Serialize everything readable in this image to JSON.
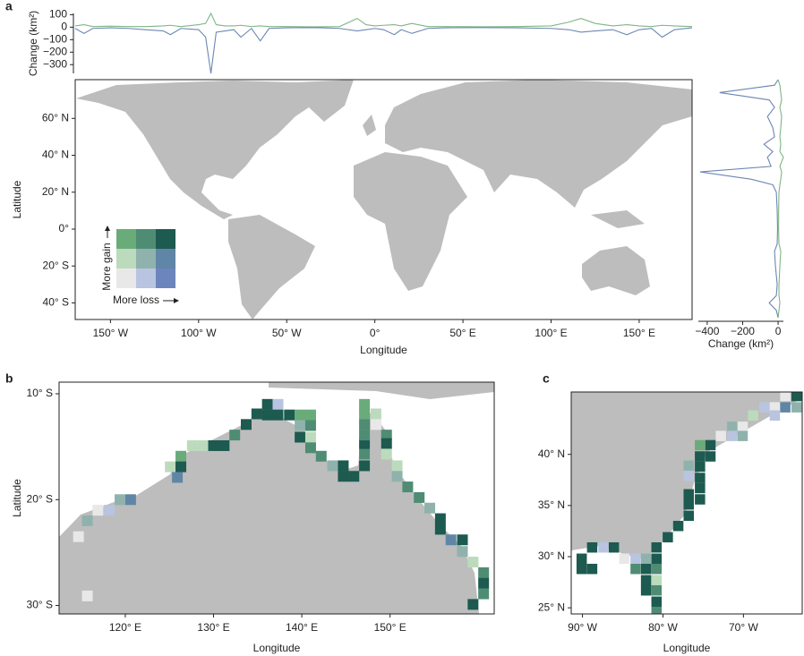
{
  "chart_data": [
    {
      "type": "line",
      "panel": "a",
      "ylabel": "Change (km²)",
      "x": [
        -170,
        -165,
        -160,
        -150,
        -140,
        -130,
        -120,
        -116,
        -110,
        -100,
        -96,
        -93,
        -90,
        -85,
        -80,
        -76,
        -70,
        -65,
        -60,
        -50,
        -40,
        -30,
        -20,
        -10,
        -5,
        0,
        5,
        11,
        15,
        21,
        30,
        40,
        60,
        80,
        100,
        110,
        117,
        125,
        135,
        143,
        150,
        157,
        163,
        170,
        180
      ],
      "series": [
        {
          "color": "#7fb685",
          "values": [
            10,
            20,
            5,
            8,
            5,
            5,
            10,
            15,
            5,
            20,
            30,
            110,
            20,
            10,
            10,
            15,
            5,
            10,
            5,
            5,
            3,
            3,
            5,
            70,
            20,
            10,
            15,
            20,
            10,
            30,
            5,
            5,
            3,
            5,
            10,
            40,
            70,
            30,
            10,
            20,
            10,
            5,
            15,
            10,
            5
          ]
        },
        {
          "color": "#6d86b4",
          "values": [
            -10,
            -50,
            -10,
            -5,
            -10,
            -20,
            -30,
            -60,
            -10,
            -20,
            -80,
            -370,
            -40,
            -30,
            -20,
            -80,
            -10,
            -110,
            -10,
            -5,
            -3,
            -5,
            -10,
            -30,
            -20,
            -10,
            -20,
            -60,
            -20,
            -50,
            -10,
            -5,
            -3,
            -5,
            -10,
            -20,
            -40,
            -30,
            -20,
            -60,
            -20,
            -10,
            -80,
            -20,
            -5
          ]
        }
      ],
      "xlim": [
        -170,
        180
      ],
      "ylim": [
        -370,
        110
      ],
      "yticks": [
        100,
        0,
        {
          "value": -100,
          "label": "−100"
        },
        {
          "value": -200,
          "label": "−200"
        },
        {
          "value": -300,
          "label": "−300"
        }
      ]
    },
    {
      "type": "map",
      "xlabel": "Longitude",
      "ylabel": "Latitude",
      "xlim": [
        -170,
        180
      ],
      "ylim": [
        -49,
        81
      ],
      "xticks": [
        {
          "value": -150,
          "label": "150° W"
        },
        {
          "value": -100,
          "label": "100° W"
        },
        {
          "value": -50,
          "label": "50° W"
        },
        {
          "value": 0,
          "label": "0°"
        },
        {
          "value": 50,
          "label": "50° E"
        },
        {
          "value": 100,
          "label": "100° E"
        },
        {
          "value": 150,
          "label": "150° E"
        }
      ],
      "yticks": [
        {
          "value": 60,
          "label": "60° N"
        },
        {
          "value": 40,
          "label": "40° N"
        },
        {
          "value": 20,
          "label": "20° N"
        },
        {
          "value": 0,
          "label": "0°"
        },
        {
          "value": -20,
          "label": "20° S"
        },
        {
          "value": -40,
          "label": "40° S"
        }
      ],
      "legend_gain": "More gain",
      "legend_loss": "More loss",
      "palette": [
        "#e8e8e8",
        "#b8c4e0",
        "#6c86bd",
        "#bcdbbc",
        "#8fb3ac",
        "#5f86a6",
        "#6aab7a",
        "#4f8c74",
        "#1d5a50"
      ]
    },
    {
      "type": "line",
      "orientation": "horizontal",
      "xlabel": "Change (km²)",
      "y": [
        -48,
        -44,
        -40,
        -36,
        -30,
        -20,
        -12,
        -8,
        0,
        10,
        20,
        24,
        27,
        31,
        34,
        39,
        42,
        46,
        50,
        55,
        61,
        66,
        70,
        74,
        78,
        81
      ],
      "series": [
        {
          "color": "#7fb685",
          "values": [
            0,
            5,
            10,
            5,
            5,
            10,
            15,
            5,
            3,
            3,
            5,
            10,
            15,
            20,
            10,
            30,
            10,
            15,
            10,
            15,
            20,
            10,
            20,
            15,
            10,
            0
          ]
        },
        {
          "color": "#6d86b4",
          "values": [
            0,
            -10,
            -50,
            -10,
            -5,
            -15,
            -20,
            -5,
            -3,
            -5,
            -10,
            -30,
            -150,
            -440,
            -40,
            -60,
            -30,
            -80,
            -20,
            -30,
            -60,
            -20,
            -50,
            -330,
            -20,
            0
          ]
        }
      ],
      "xlim": [
        -450,
        30
      ],
      "ylim": [
        -49,
        81
      ],
      "xticks": [
        {
          "value": -400,
          "label": "−400"
        },
        {
          "value": -200,
          "label": "−200"
        },
        0
      ]
    },
    {
      "type": "map",
      "panel": "b",
      "xlabel": "Longitude",
      "ylabel": "Latitude",
      "xlim": [
        112.5,
        161.8
      ],
      "ylim": [
        -30.8,
        -8.9
      ],
      "xticks": [
        {
          "value": 120,
          "label": "120° E"
        },
        {
          "value": 130,
          "label": "130° E"
        },
        {
          "value": 140,
          "label": "140° E"
        },
        {
          "value": 150,
          "label": "150° E"
        }
      ],
      "yticks": [
        {
          "value": -10,
          "label": "10° S"
        },
        {
          "value": -20,
          "label": "20° S"
        },
        {
          "value": -30,
          "label": "30° S"
        }
      ],
      "cells": {
        "lon": [
          128.8,
          130.0,
          131.2,
          132.4,
          133.7,
          134.9,
          136.1,
          137.3,
          136.1,
          137.3,
          138.6,
          139.8,
          141.0,
          139.8,
          141.0,
          139.8,
          141.0,
          141.0,
          142.2,
          143.5,
          144.7,
          144.7,
          145.9,
          147.1,
          147.1,
          147.1,
          147.1,
          147.1,
          147.1,
          148.4,
          147.1,
          148.4,
          149.6,
          149.6,
          149.6,
          150.8,
          150.8,
          152.0,
          153.3,
          154.5,
          155.7,
          155.7,
          156.9,
          158.2,
          158.2,
          159.4,
          160.6,
          160.6,
          160.6,
          159.4,
          127.6,
          126.3,
          125.1,
          126.3,
          125.9,
          120.6,
          119.4,
          118.2,
          116.9,
          115.7,
          114.7,
          115.7
        ],
        "lat": [
          -14.9,
          -14.9,
          -14.9,
          -13.9,
          -12.9,
          -11.9,
          -11.0,
          -11.0,
          -12.0,
          -12.0,
          -12.0,
          -12.0,
          -12.0,
          -13.0,
          -13.0,
          -14.1,
          -14.1,
          -15.1,
          -15.9,
          -16.8,
          -16.8,
          -17.8,
          -17.8,
          -16.8,
          -15.7,
          -14.7,
          -13.9,
          -12.9,
          -11.9,
          -11.9,
          -11.0,
          -12.9,
          -13.9,
          -14.7,
          -15.7,
          -16.8,
          -17.8,
          -18.8,
          -19.8,
          -20.8,
          -21.8,
          -22.8,
          -23.8,
          -23.8,
          -24.9,
          -25.9,
          -26.9,
          -27.9,
          -28.9,
          -29.9,
          -14.9,
          -15.9,
          -16.9,
          -16.9,
          -17.9,
          -20.0,
          -20.0,
          -21.0,
          -21.0,
          -22.0,
          -23.5,
          -29.1
        ],
        "class": [
          3,
          8,
          8,
          7,
          8,
          8,
          8,
          1,
          8,
          8,
          8,
          6,
          6,
          4,
          7,
          8,
          3,
          7,
          7,
          4,
          8,
          8,
          8,
          8,
          7,
          8,
          7,
          7,
          6,
          3,
          6,
          0,
          7,
          8,
          3,
          3,
          4,
          7,
          7,
          4,
          8,
          8,
          5,
          8,
          4,
          3,
          7,
          8,
          7,
          8,
          3,
          6,
          3,
          8,
          5,
          5,
          4,
          1,
          0,
          4,
          0,
          0
        ]
      }
    },
    {
      "type": "map",
      "panel": "c",
      "xlabel": "Longitude",
      "xlim": [
        -91.4,
        -62.7
      ],
      "ylim": [
        24.4,
        46.1
      ],
      "xticks": [
        {
          "value": -90,
          "label": "90° W"
        },
        {
          "value": -80,
          "label": "80° W"
        },
        {
          "value": -70,
          "label": "70° W"
        }
      ],
      "yticks": [
        {
          "value": 40,
          "label": "40° N"
        },
        {
          "value": 35,
          "label": "35° N"
        },
        {
          "value": 30,
          "label": "30° N"
        },
        {
          "value": 25,
          "label": "25° N"
        }
      ],
      "cells": {
        "lon": [
          -63.4,
          -64.8,
          -64.8,
          -63.4,
          -66.1,
          -67.4,
          -66.1,
          -68.8,
          -70.1,
          -71.4,
          -70.1,
          -71.4,
          -72.8,
          -74.1,
          -75.4,
          -74.1,
          -75.4,
          -76.8,
          -75.4,
          -76.8,
          -75.4,
          -75.4,
          -76.8,
          -75.4,
          -76.8,
          -76.8,
          -78.1,
          -79.4,
          -80.8,
          -80.8,
          -82.1,
          -83.4,
          -84.8,
          -86.1,
          -87.4,
          -88.8,
          -90.1,
          -90.1,
          -88.8,
          -83.4,
          -82.1,
          -80.8,
          -82.1,
          -80.8,
          -82.1,
          -80.8,
          -80.8,
          -80.8
        ],
        "lat": [
          45.7,
          45.7,
          44.6,
          44.6,
          44.6,
          44.6,
          43.8,
          43.8,
          42.7,
          42.7,
          41.8,
          41.8,
          41.8,
          40.9,
          40.9,
          39.8,
          39.8,
          38.9,
          38.8,
          37.9,
          37.7,
          36.7,
          36.1,
          35.6,
          35.1,
          34.0,
          33.0,
          31.9,
          30.9,
          29.8,
          29.8,
          29.8,
          29.8,
          30.9,
          30.9,
          30.9,
          29.8,
          28.8,
          28.8,
          28.8,
          28.8,
          28.8,
          27.7,
          27.7,
          26.7,
          26.7,
          25.6,
          24.6
        ],
        "class": [
          8,
          0,
          5,
          4,
          0,
          1,
          1,
          3,
          0,
          4,
          4,
          1,
          0,
          8,
          6,
          8,
          8,
          4,
          8,
          1,
          8,
          8,
          8,
          8,
          8,
          8,
          8,
          8,
          8,
          8,
          4,
          1,
          0,
          8,
          1,
          8,
          8,
          8,
          8,
          7,
          8,
          7,
          8,
          3,
          8,
          7,
          8,
          7
        ]
      }
    }
  ]
}
